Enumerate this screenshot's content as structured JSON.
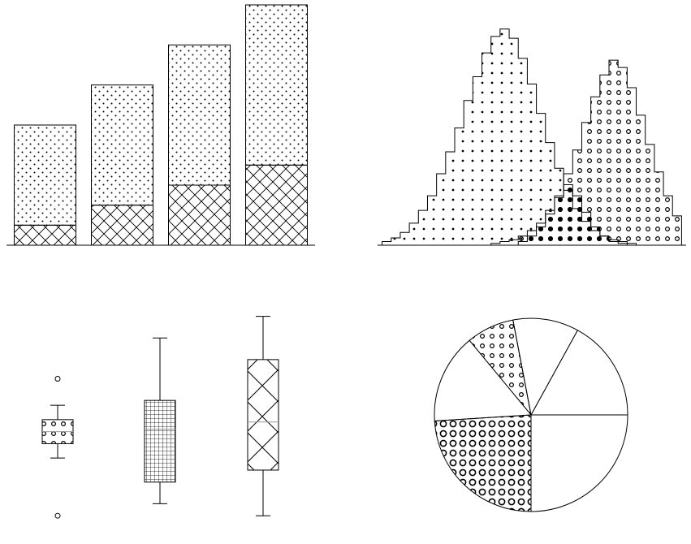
{
  "chart_data": [
    {
      "type": "bar",
      "stacked": true,
      "categories": [
        "",
        "",
        "",
        ""
      ],
      "series": [
        {
          "values": [
            1,
            2,
            3,
            4
          ],
          "pattern": "crosshatch"
        },
        {
          "values": [
            5,
            6,
            7,
            8
          ],
          "pattern": "dots"
        }
      ],
      "ylim": [
        0,
        12
      ],
      "grid": false,
      "axes_visible": false
    },
    {
      "type": "area",
      "subtype": "step-histogram",
      "x": [
        -3.3,
        -3.0,
        -2.7,
        -2.4,
        -2.1,
        -1.8,
        -1.5,
        -1.2,
        -0.9,
        -0.6,
        -0.3,
        0.0,
        0.3,
        0.6,
        0.9,
        1.2,
        1.5,
        1.8,
        2.1,
        2.4,
        2.7,
        3.0,
        3.3,
        3.6,
        3.9,
        4.2,
        4.5,
        4.8,
        5.1,
        5.4,
        5.7,
        6.0,
        6.3
      ],
      "series": [
        {
          "pattern": "small-dots",
          "values": [
            2,
            4,
            7,
            12,
            19,
            27,
            39,
            51,
            64,
            79,
            92,
            105,
            114,
            118,
            113,
            102,
            88,
            72,
            56,
            42,
            30,
            20,
            13,
            8,
            5,
            3,
            2,
            1,
            0,
            0,
            0,
            0,
            0
          ]
        },
        {
          "pattern": "rings",
          "values": [
            0,
            0,
            0,
            0,
            0,
            0,
            0,
            0,
            0,
            0,
            0,
            0,
            1,
            2,
            3,
            5,
            8,
            12,
            19,
            27,
            39,
            52,
            67,
            81,
            93,
            101,
            97,
            86,
            71,
            55,
            40,
            27,
            16
          ]
        },
        {
          "pattern": "large-dots",
          "values": [
            0,
            0,
            0,
            0,
            0,
            0,
            0,
            0,
            0,
            0,
            0,
            0,
            0,
            0,
            0,
            2,
            5,
            10,
            17,
            26,
            33,
            27,
            18,
            10,
            5,
            2,
            1,
            0,
            0,
            0,
            0,
            0,
            0
          ]
        }
      ],
      "ylim": [
        0,
        125
      ],
      "grid": false,
      "axes_visible": false
    },
    {
      "type": "box",
      "boxes": [
        {
          "pattern": "rings",
          "whisker_low": 2.9,
          "q1": 3.5,
          "median": 4.0,
          "q3": 4.5,
          "whisker_high": 5.1,
          "outliers": [
            0.5,
            6.2
          ]
        },
        {
          "pattern": "grid",
          "whisker_low": 1.0,
          "q1": 1.9,
          "median": 4.1,
          "q3": 5.3,
          "whisker_high": 7.9
        },
        {
          "pattern": "diagonal-cross",
          "whisker_low": 0.5,
          "q1": 2.4,
          "median": 4.4,
          "q3": 7.0,
          "whisker_high": 8.8
        }
      ],
      "ylim": [
        0,
        9.8
      ],
      "grid": false,
      "axes_visible": false
    },
    {
      "type": "pie",
      "start_angle_deg": 0,
      "direction": "counterclockwise",
      "slices": [
        {
          "value": 17,
          "pattern": "none"
        },
        {
          "value": 11,
          "pattern": "none"
        },
        {
          "value": 8,
          "pattern": "rings"
        },
        {
          "value": 15,
          "pattern": "none"
        },
        {
          "value": 24,
          "pattern": "large-rings"
        },
        {
          "value": 25,
          "pattern": "none"
        }
      ]
    }
  ]
}
